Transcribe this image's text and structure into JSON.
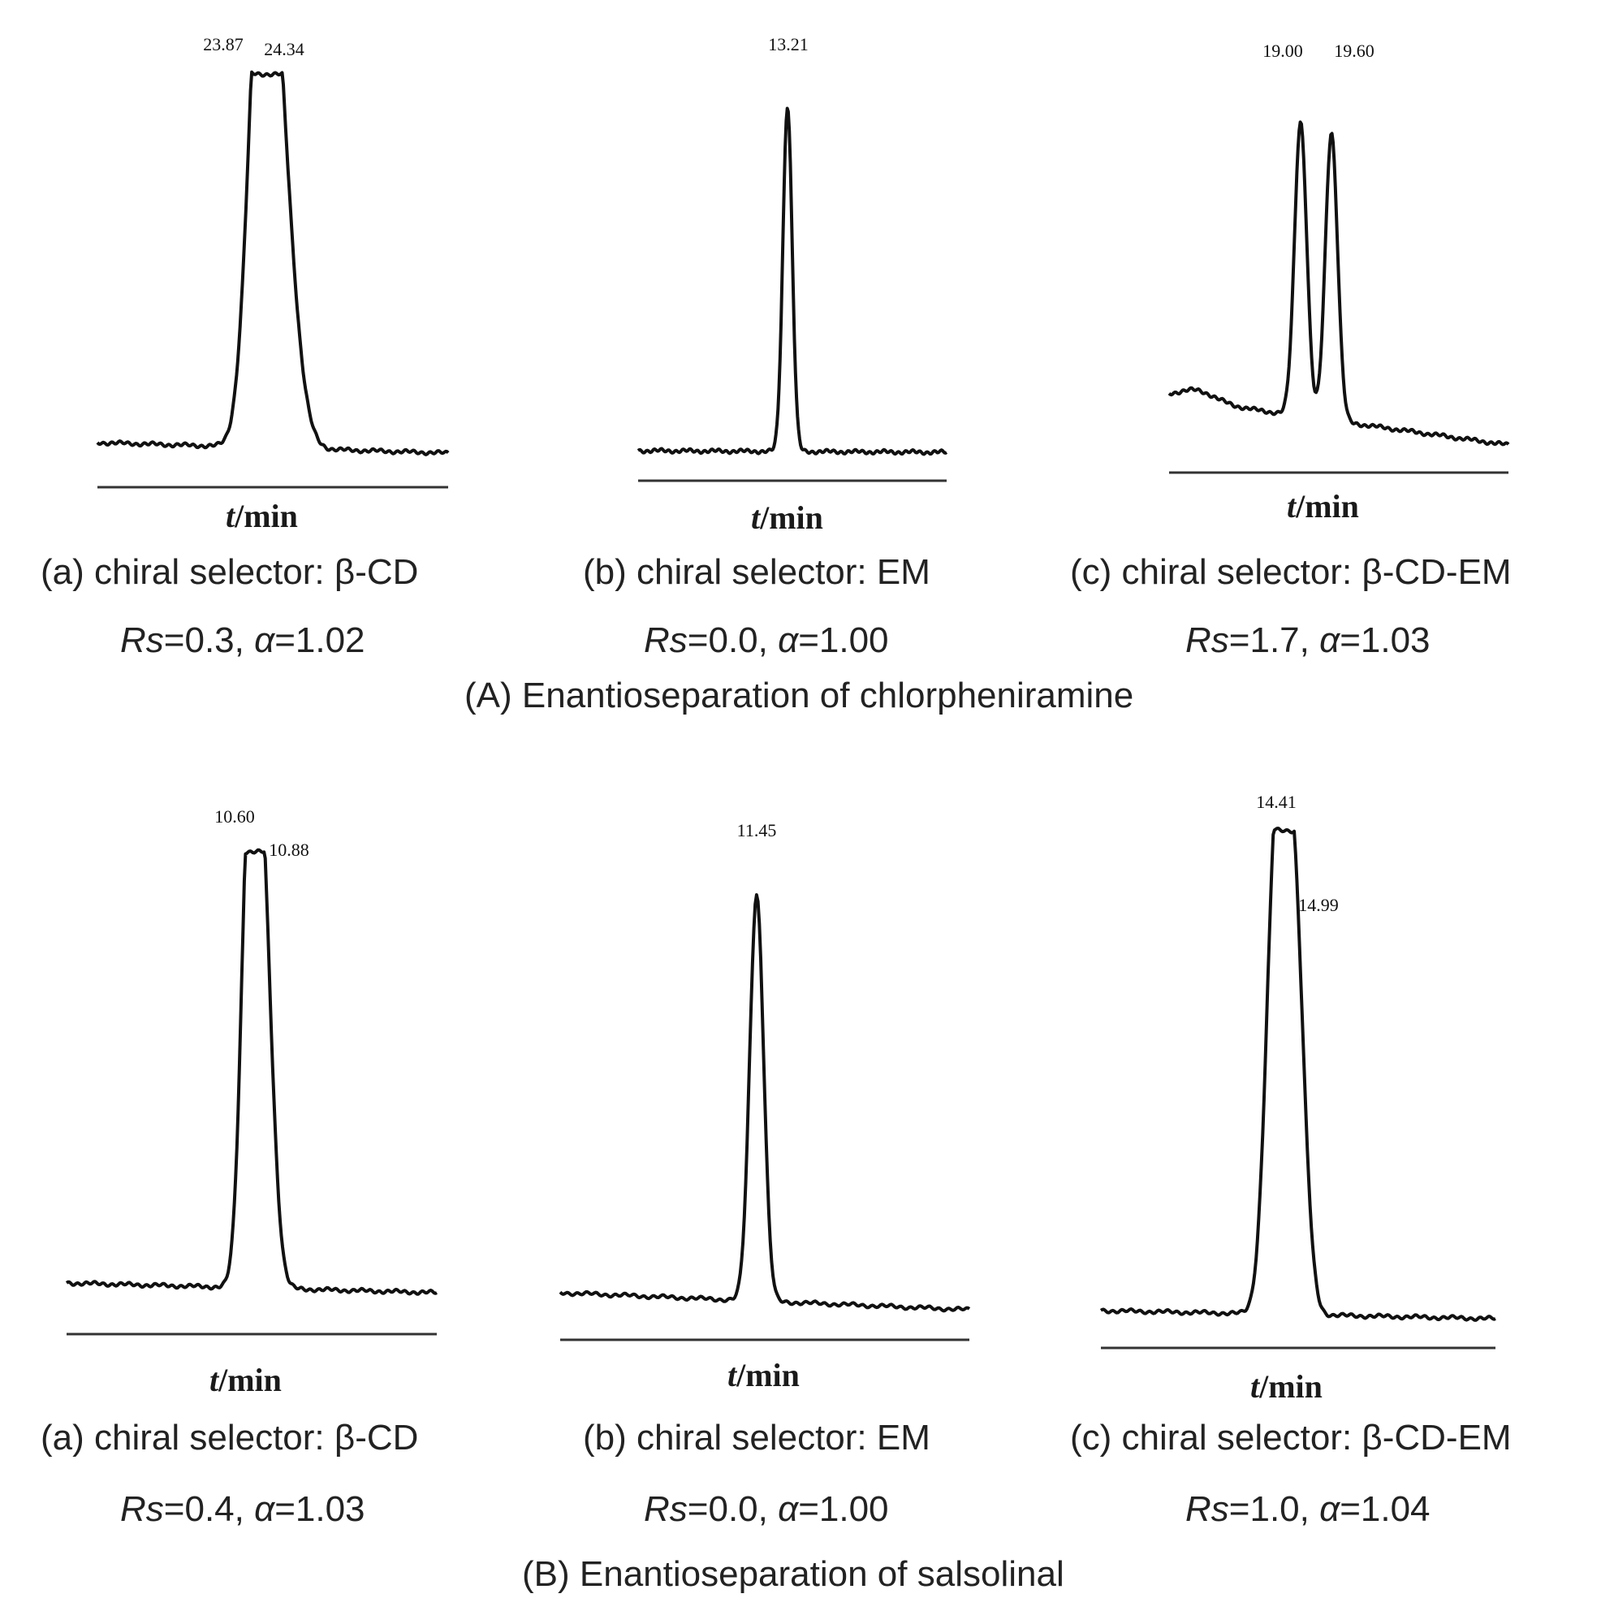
{
  "groups": [
    {
      "title": "(A) Enantioseparation of chlorpheniramine",
      "panels": [
        {
          "caption": "(a) chiral selector: β-CD",
          "rs_label": "Rs",
          "rs_value": "=0.3, ",
          "alpha_label": "α",
          "alpha_value": "=1.02",
          "xlabel_var": "t",
          "xlabel_unit": "/min"
        },
        {
          "caption": "(b) chiral selector: EM",
          "rs_label": "Rs",
          "rs_value": "=0.0, ",
          "alpha_label": "α",
          "alpha_value": "=1.00",
          "xlabel_var": "t",
          "xlabel_unit": "/min"
        },
        {
          "caption": "(c) chiral selector: β-CD-EM",
          "rs_label": "Rs",
          "rs_value": "=1.7, ",
          "alpha_label": "α",
          "alpha_value": "=1.03",
          "xlabel_var": "t",
          "xlabel_unit": "/min"
        }
      ]
    },
    {
      "title": "(B) Enantioseparation of salsolinal",
      "panels": [
        {
          "caption": "(a) chiral selector: β-CD",
          "rs_label": "Rs",
          "rs_value": "=0.4, ",
          "alpha_label": "α",
          "alpha_value": "=1.03",
          "xlabel_var": "t",
          "xlabel_unit": "/min"
        },
        {
          "caption": "(b) chiral selector: EM",
          "rs_label": "Rs",
          "rs_value": "=0.0, ",
          "alpha_label": "α",
          "alpha_value": "=1.00",
          "xlabel_var": "t",
          "xlabel_unit": "/min"
        },
        {
          "caption": "(c) chiral selector: β-CD-EM",
          "rs_label": "Rs",
          "rs_value": "=1.0, ",
          "alpha_label": "α",
          "alpha_value": "=1.04",
          "xlabel_var": "t",
          "xlabel_unit": "/min"
        }
      ]
    }
  ],
  "chart_data": [
    {
      "type": "line",
      "xlabel": "t/min",
      "peaks": [
        {
          "time": 23.87,
          "label": "23.87",
          "height": 0.93
        },
        {
          "time": 24.34,
          "label": "24.34",
          "height": 0.91
        }
      ]
    },
    {
      "type": "line",
      "xlabel": "t/min",
      "peaks": [
        {
          "time": 13.21,
          "label": "13.21",
          "height": 0.93
        }
      ]
    },
    {
      "type": "line",
      "xlabel": "t/min",
      "peaks": [
        {
          "time": 19.0,
          "label": "19.00",
          "height": 0.93
        },
        {
          "time": 19.6,
          "label": "19.60",
          "height": 0.91
        }
      ]
    },
    {
      "type": "line",
      "xlabel": "t/min",
      "peaks": [
        {
          "time": 10.6,
          "label": "10.60",
          "height": 0.94
        },
        {
          "time": 10.88,
          "label": "10.88",
          "height": 0.89
        }
      ]
    },
    {
      "type": "line",
      "xlabel": "t/min",
      "peaks": [
        {
          "time": 11.45,
          "label": "11.45",
          "height": 0.93
        }
      ]
    },
    {
      "type": "line",
      "xlabel": "t/min",
      "peaks": [
        {
          "time": 14.41,
          "label": "14.41",
          "height": 0.95
        },
        {
          "time": 14.99,
          "label": "14.99",
          "height": 0.82
        }
      ]
    }
  ]
}
